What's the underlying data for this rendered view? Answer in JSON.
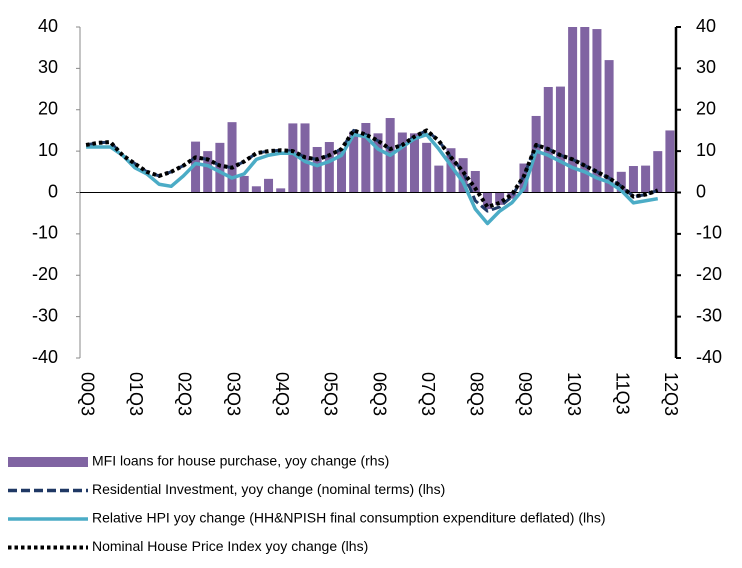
{
  "chart_data": {
    "type": "combo",
    "categories": [
      "00Q3",
      null,
      null,
      null,
      "01Q3",
      null,
      null,
      null,
      "02Q3",
      null,
      null,
      null,
      "03Q3",
      null,
      null,
      null,
      "04Q3",
      null,
      null,
      null,
      "05Q3",
      null,
      null,
      null,
      "06Q3",
      null,
      null,
      null,
      "07Q3",
      null,
      null,
      null,
      "08Q3",
      null,
      null,
      null,
      "09Q3",
      null,
      null,
      null,
      "10Q3",
      null,
      null,
      null,
      "11Q3",
      null,
      null,
      null,
      "12Q3"
    ],
    "ylim": [
      -40,
      40
    ],
    "yticks": [
      -40,
      -30,
      -20,
      -10,
      0,
      10,
      20,
      30,
      40
    ],
    "y2lim": [
      -40,
      40
    ],
    "y2ticks": [
      -40,
      -30,
      -20,
      -10,
      0,
      10,
      20,
      30,
      40
    ],
    "series": [
      {
        "name": "MFI loans for house purchase, yoy change (rhs)",
        "type": "bar",
        "axis": "y2",
        "color": "#8064a2",
        "values": [
          null,
          null,
          null,
          null,
          null,
          null,
          null,
          null,
          null,
          12.3,
          10,
          12,
          17,
          4,
          1.5,
          3.3,
          1,
          16.7,
          16.7,
          11,
          12.2,
          10.5,
          14.7,
          16.8,
          14.3,
          18,
          14.5,
          14.3,
          12,
          6.5,
          10.7,
          8.3,
          5.2,
          -4,
          -3,
          -1.5,
          7,
          18.5,
          25.5,
          25.6,
          40,
          40,
          39.5,
          32,
          5,
          6.4,
          6.5,
          10,
          15
        ]
      },
      {
        "name": "Residential Investment, yoy change (nominal terms) (lhs)",
        "type": "line",
        "style": "dashed",
        "color": "#1f3864",
        "values": [
          11.5,
          12,
          12.2,
          9,
          7,
          5,
          4,
          5,
          6.5,
          8.5,
          8,
          6.5,
          6,
          7.5,
          9.5,
          10,
          10.2,
          10,
          8.5,
          8,
          9,
          10.5,
          15,
          14,
          12.5,
          10.5,
          11.5,
          13.5,
          15,
          12.5,
          8.5,
          5,
          -2,
          -4.5,
          -3.5,
          -1,
          4,
          11.5,
          10.5,
          9,
          8,
          6.5,
          5,
          3.5,
          1.5,
          -1,
          -0.5,
          0.5,
          null
        ]
      },
      {
        "name": "Relative HPI yoy change (HH&NPISH final consumption expenditure deflated) (lhs)",
        "type": "line",
        "style": "solid",
        "color": "#4bacc6",
        "values": [
          11,
          11,
          11,
          9,
          6,
          4.5,
          2,
          1.5,
          4,
          7,
          6.5,
          5,
          3.5,
          4.5,
          8,
          9,
          9.5,
          9.5,
          7.5,
          6.5,
          7.5,
          9,
          14,
          13.5,
          10.5,
          9,
          11,
          13,
          14,
          10.5,
          6.5,
          2.5,
          -4,
          -7.5,
          -4.5,
          -2.5,
          1,
          10,
          9,
          7.5,
          6,
          5,
          3.5,
          2.5,
          0.5,
          -2.5,
          -2,
          -1.5,
          null
        ]
      },
      {
        "name": "Nominal House Price Index yoy change (lhs)",
        "type": "line",
        "style": "dotted",
        "color": "#000000",
        "values": [
          11.5,
          12,
          12.2,
          9,
          7,
          5,
          4,
          5,
          6.5,
          8.5,
          8,
          6.5,
          6,
          7.5,
          9.5,
          10,
          10.2,
          10,
          8.5,
          8,
          9,
          10.5,
          15,
          14,
          12.5,
          10.5,
          11.5,
          13.5,
          15,
          12.5,
          8.5,
          5,
          1,
          -3.5,
          -2.5,
          -0.5,
          4,
          11.5,
          10.5,
          9,
          8,
          6.5,
          5,
          3.5,
          1.5,
          -1,
          -0.5,
          0.5,
          null
        ]
      }
    ]
  }
}
